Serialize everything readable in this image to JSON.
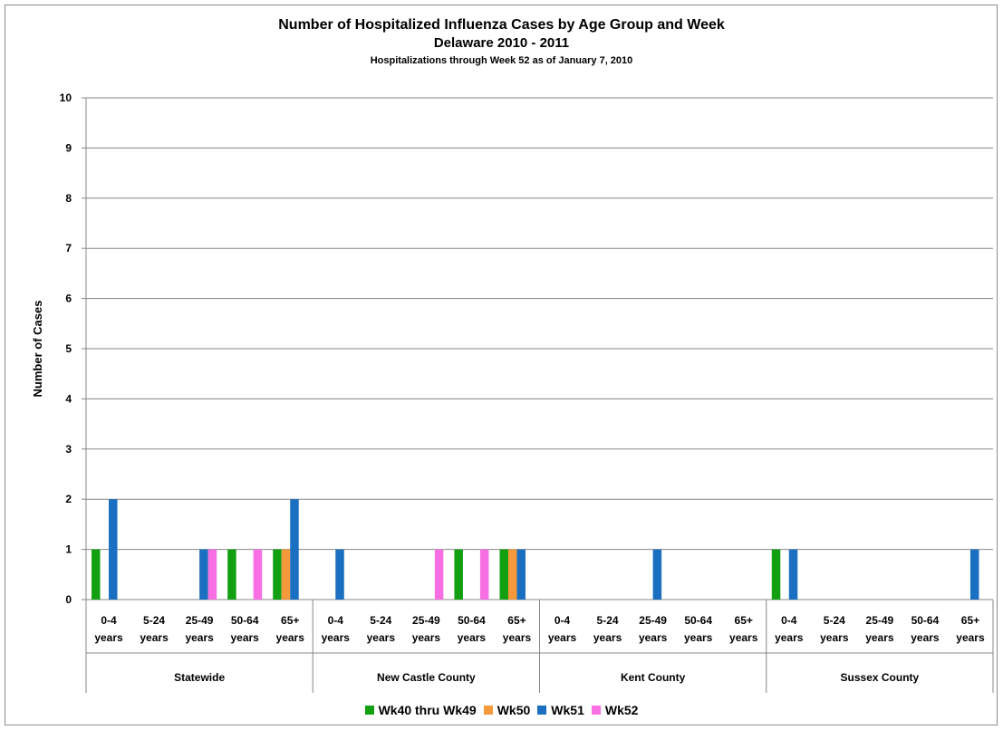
{
  "chart_data": {
    "type": "bar",
    "title": "Number of Hospitalized Influenza Cases by Age Group and Week",
    "subtitle": "Delaware 2010 - 2011",
    "note": "Hospitalizations through Week 52 as of January 7, 2010",
    "ylabel": "Number of Cases",
    "xlabel": "",
    "ylim": [
      0,
      10
    ],
    "yticks": [
      "0",
      "1",
      "2",
      "3",
      "4",
      "5",
      "6",
      "7",
      "8",
      "9",
      "10"
    ],
    "grid": true,
    "legend_position": "bottom",
    "groups": [
      "Statewide",
      "New Castle County",
      "Kent County",
      "Sussex County"
    ],
    "categories": [
      {
        "line1": "0-4",
        "line2": "years"
      },
      {
        "line1": "5-24",
        "line2": "years"
      },
      {
        "line1": "25-49",
        "line2": "years"
      },
      {
        "line1": "50-64",
        "line2": "years"
      },
      {
        "line1": "65+",
        "line2": "years"
      }
    ],
    "series": [
      {
        "name": "Wk40 thru Wk49",
        "color": "#12a012",
        "values": [
          [
            1,
            0,
            0,
            1,
            1
          ],
          [
            0,
            0,
            0,
            1,
            1
          ],
          [
            0,
            0,
            0,
            0,
            0
          ],
          [
            1,
            0,
            0,
            0,
            0
          ]
        ]
      },
      {
        "name": "Wk50",
        "color": "#f59a3a",
        "values": [
          [
            0,
            0,
            0,
            0,
            1
          ],
          [
            0,
            0,
            0,
            0,
            1
          ],
          [
            0,
            0,
            0,
            0,
            0
          ],
          [
            0,
            0,
            0,
            0,
            0
          ]
        ]
      },
      {
        "name": "Wk51",
        "color": "#1a6fc0",
        "values": [
          [
            2,
            0,
            1,
            0,
            2
          ],
          [
            1,
            0,
            0,
            0,
            1
          ],
          [
            0,
            0,
            1,
            0,
            0
          ],
          [
            1,
            0,
            0,
            0,
            1
          ]
        ]
      },
      {
        "name": "Wk52",
        "color": "#f76fe3",
        "values": [
          [
            0,
            0,
            1,
            1,
            0
          ],
          [
            0,
            0,
            1,
            1,
            0
          ],
          [
            0,
            0,
            0,
            0,
            0
          ],
          [
            0,
            0,
            0,
            0,
            0
          ]
        ]
      }
    ]
  }
}
